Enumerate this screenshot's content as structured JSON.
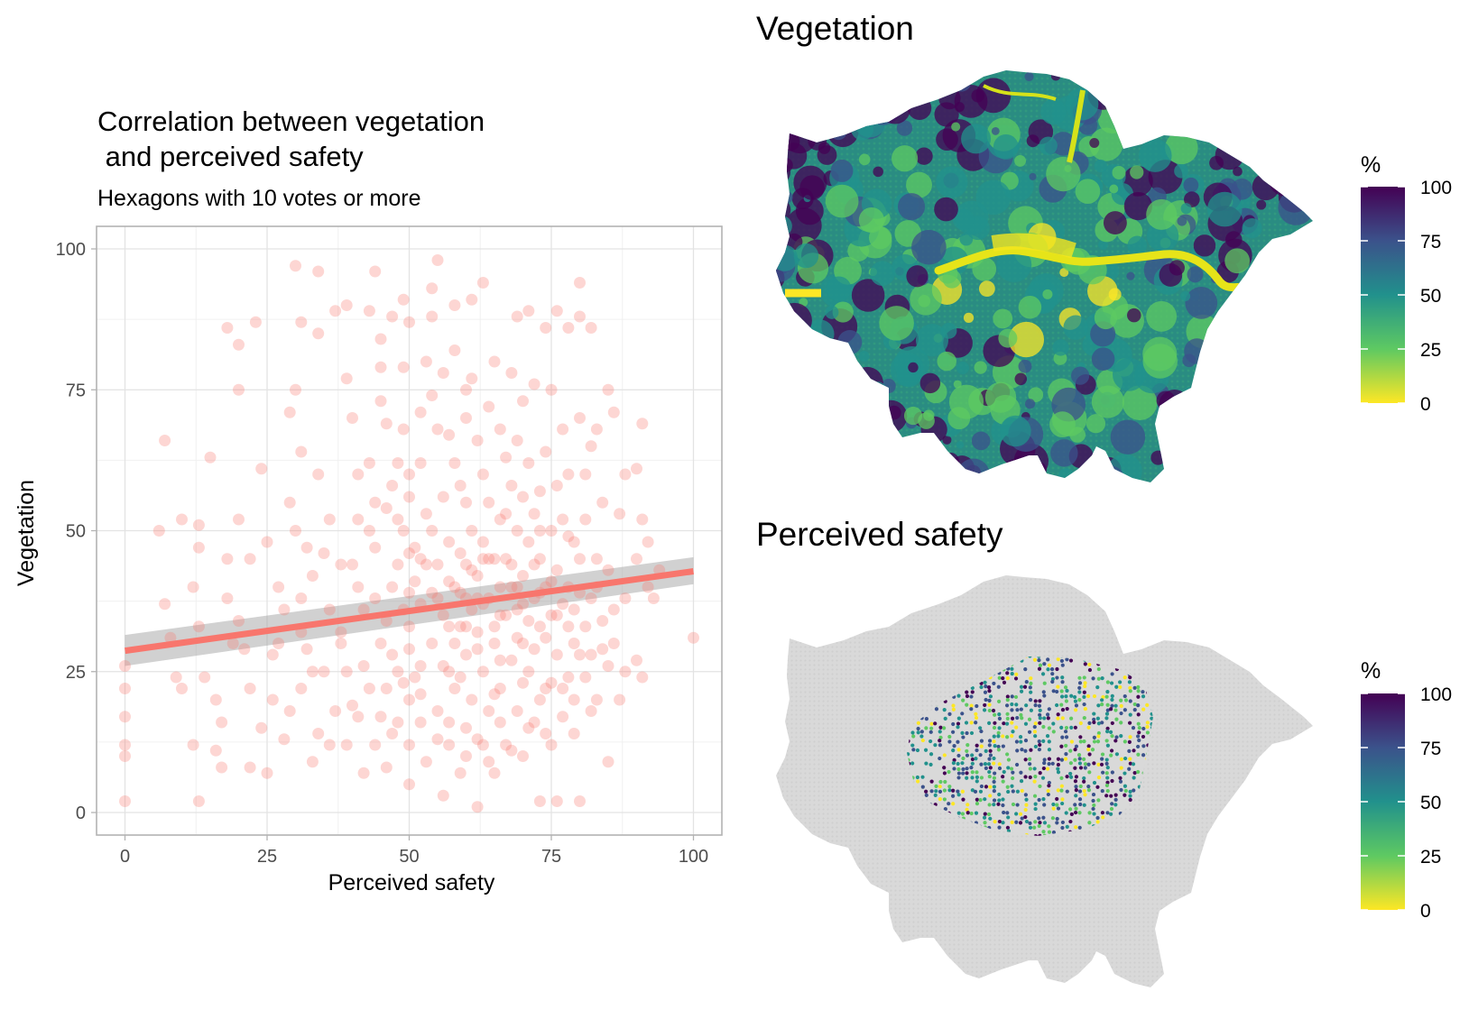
{
  "chart_data": [
    {
      "type": "scatter",
      "title": "Correlation between vegetation",
      "title_line2": " and perceived safety",
      "subtitle": "Hexagons with 10 votes or more",
      "xlabel": "Perceived safety",
      "ylabel": "Vegetation",
      "xlim": [
        -5,
        105
      ],
      "ylim": [
        -4,
        104
      ],
      "xticks": [
        0,
        25,
        50,
        75,
        100
      ],
      "yticks": [
        0,
        25,
        50,
        75,
        100
      ],
      "grid": true,
      "point_color": "#F8766D",
      "trend": {
        "x": [
          0,
          100
        ],
        "y": [
          28.7,
          42.8
        ],
        "ci_low": [
          26,
          40.5
        ],
        "ci_high": [
          31.5,
          45.3
        ],
        "color": "#F8766D"
      },
      "points": [
        [
          0,
          2
        ],
        [
          0,
          10
        ],
        [
          0,
          12
        ],
        [
          0,
          17
        ],
        [
          0,
          22
        ],
        [
          0,
          26
        ],
        [
          7,
          66
        ],
        [
          6,
          50
        ],
        [
          7,
          37
        ],
        [
          8,
          31
        ],
        [
          9,
          24
        ],
        [
          10,
          22
        ],
        [
          10,
          52
        ],
        [
          12,
          12
        ],
        [
          12,
          40
        ],
        [
          13,
          2
        ],
        [
          13,
          33
        ],
        [
          13,
          47
        ],
        [
          13,
          51
        ],
        [
          14,
          24
        ],
        [
          15,
          63
        ],
        [
          16,
          11
        ],
        [
          16,
          20
        ],
        [
          17,
          16
        ],
        [
          17,
          8
        ],
        [
          18,
          86
        ],
        [
          18,
          45
        ],
        [
          18,
          38
        ],
        [
          19,
          30
        ],
        [
          20,
          83
        ],
        [
          20,
          75
        ],
        [
          20,
          52
        ],
        [
          20,
          34
        ],
        [
          21,
          29
        ],
        [
          22,
          45
        ],
        [
          22,
          8
        ],
        [
          22,
          22
        ],
        [
          23,
          87
        ],
        [
          24,
          15
        ],
        [
          24,
          61
        ],
        [
          25,
          7
        ],
        [
          25,
          48
        ],
        [
          26,
          20
        ],
        [
          27,
          30
        ],
        [
          28,
          13
        ],
        [
          29,
          71
        ],
        [
          29,
          55
        ],
        [
          30,
          97
        ],
        [
          30,
          75
        ],
        [
          31,
          87
        ],
        [
          31,
          64
        ],
        [
          31,
          38
        ],
        [
          31,
          22
        ],
        [
          32,
          47
        ],
        [
          32,
          29
        ],
        [
          33,
          9
        ],
        [
          34,
          96
        ],
        [
          34,
          85
        ],
        [
          34,
          60
        ],
        [
          35,
          25
        ],
        [
          36,
          12
        ],
        [
          37,
          89
        ],
        [
          38,
          44
        ],
        [
          38,
          32
        ],
        [
          39,
          77
        ],
        [
          39,
          90
        ],
        [
          40,
          19
        ],
        [
          40,
          70
        ],
        [
          41,
          52
        ],
        [
          41,
          60
        ],
        [
          42,
          7
        ],
        [
          42,
          36
        ],
        [
          43,
          89
        ],
        [
          43,
          62
        ],
        [
          44,
          96
        ],
        [
          44,
          47
        ],
        [
          45,
          84
        ],
        [
          45,
          79
        ],
        [
          45,
          73
        ],
        [
          45,
          30
        ],
        [
          45,
          17
        ],
        [
          46,
          69
        ],
        [
          46,
          54
        ],
        [
          47,
          88
        ],
        [
          47,
          14
        ],
        [
          47,
          40
        ],
        [
          48,
          62
        ],
        [
          48,
          44
        ],
        [
          48,
          25
        ],
        [
          49,
          91
        ],
        [
          49,
          79
        ],
        [
          49,
          68
        ],
        [
          49,
          50
        ],
        [
          50,
          87
        ],
        [
          50,
          60
        ],
        [
          50,
          56
        ],
        [
          50,
          46
        ],
        [
          50,
          33
        ],
        [
          50,
          29
        ],
        [
          50,
          20
        ],
        [
          50,
          12
        ],
        [
          50,
          5
        ],
        [
          51,
          41
        ],
        [
          52,
          71
        ],
        [
          52,
          62
        ],
        [
          52,
          37
        ],
        [
          52,
          21
        ],
        [
          53,
          80
        ],
        [
          53,
          53
        ],
        [
          53,
          9
        ],
        [
          54,
          93
        ],
        [
          54,
          88
        ],
        [
          54,
          74
        ],
        [
          54,
          30
        ],
        [
          55,
          98
        ],
        [
          55,
          68
        ],
        [
          55,
          44
        ],
        [
          55,
          18
        ],
        [
          56,
          78
        ],
        [
          56,
          56
        ],
        [
          56,
          35
        ],
        [
          56,
          3
        ],
        [
          57,
          67
        ],
        [
          57,
          48
        ],
        [
          57,
          25
        ],
        [
          57,
          12
        ],
        [
          58,
          90
        ],
        [
          58,
          82
        ],
        [
          58,
          62
        ],
        [
          58,
          40
        ],
        [
          58,
          22
        ],
        [
          59,
          58
        ],
        [
          59,
          46
        ],
        [
          59,
          33
        ],
        [
          59,
          7
        ],
        [
          60,
          75
        ],
        [
          60,
          70
        ],
        [
          60,
          55
        ],
        [
          60,
          44
        ],
        [
          60,
          28
        ],
        [
          60,
          15
        ],
        [
          61,
          91
        ],
        [
          61,
          77
        ],
        [
          61,
          50
        ],
        [
          61,
          36
        ],
        [
          61,
          20
        ],
        [
          62,
          66
        ],
        [
          62,
          42
        ],
        [
          62,
          32
        ],
        [
          62,
          1
        ],
        [
          63,
          94
        ],
        [
          63,
          60
        ],
        [
          63,
          48
        ],
        [
          63,
          25
        ],
        [
          63,
          12
        ],
        [
          64,
          72
        ],
        [
          64,
          55
        ],
        [
          64,
          38
        ],
        [
          64,
          18
        ],
        [
          65,
          80
        ],
        [
          65,
          45
        ],
        [
          65,
          30
        ],
        [
          65,
          7
        ],
        [
          66,
          68
        ],
        [
          66,
          52
        ],
        [
          66,
          40
        ],
        [
          66,
          22
        ],
        [
          67,
          63
        ],
        [
          67,
          35
        ],
        [
          67,
          12
        ],
        [
          68,
          78
        ],
        [
          68,
          58
        ],
        [
          68,
          44
        ],
        [
          68,
          27
        ],
        [
          69,
          88
        ],
        [
          69,
          66
        ],
        [
          69,
          50
        ],
        [
          69,
          36
        ],
        [
          69,
          18
        ],
        [
          70,
          73
        ],
        [
          70,
          56
        ],
        [
          70,
          42
        ],
        [
          70,
          30
        ],
        [
          70,
          10
        ],
        [
          71,
          89
        ],
        [
          71,
          62
        ],
        [
          71,
          48
        ],
        [
          71,
          25
        ],
        [
          72,
          76
        ],
        [
          72,
          53
        ],
        [
          72,
          38
        ],
        [
          72,
          16
        ],
        [
          73,
          57
        ],
        [
          73,
          45
        ],
        [
          73,
          33
        ],
        [
          73,
          2
        ],
        [
          74,
          86
        ],
        [
          74,
          64
        ],
        [
          74,
          40
        ],
        [
          74,
          22
        ],
        [
          75,
          75
        ],
        [
          75,
          50
        ],
        [
          75,
          35
        ],
        [
          75,
          12
        ],
        [
          76,
          89
        ],
        [
          76,
          58
        ],
        [
          76,
          43
        ],
        [
          76,
          28
        ],
        [
          76,
          2
        ],
        [
          77,
          68
        ],
        [
          77,
          52
        ],
        [
          77,
          22
        ],
        [
          78,
          86
        ],
        [
          78,
          60
        ],
        [
          78,
          40
        ],
        [
          78,
          33
        ],
        [
          79,
          48
        ],
        [
          79,
          14
        ],
        [
          80,
          94
        ],
        [
          80,
          88
        ],
        [
          80,
          70
        ],
        [
          80,
          45
        ],
        [
          80,
          28
        ],
        [
          80,
          2
        ],
        [
          81,
          60
        ],
        [
          81,
          52
        ],
        [
          82,
          86
        ],
        [
          82,
          65
        ],
        [
          82,
          38
        ],
        [
          82,
          28
        ],
        [
          82,
          18
        ],
        [
          83,
          68
        ],
        [
          83,
          45
        ],
        [
          84,
          55
        ],
        [
          84,
          34
        ],
        [
          85,
          75
        ],
        [
          85,
          43
        ],
        [
          85,
          9
        ],
        [
          86,
          71
        ],
        [
          86,
          30
        ],
        [
          87,
          53
        ],
        [
          87,
          20
        ],
        [
          88,
          60
        ],
        [
          88,
          38
        ],
        [
          88,
          25
        ],
        [
          90,
          61
        ],
        [
          90,
          45
        ],
        [
          90,
          27
        ],
        [
          91,
          69
        ],
        [
          91,
          52
        ],
        [
          91,
          24
        ],
        [
          92,
          48
        ],
        [
          92,
          40
        ],
        [
          93,
          38
        ],
        [
          94,
          43
        ],
        [
          100,
          31
        ],
        [
          30,
          50
        ],
        [
          33,
          42
        ],
        [
          36,
          36
        ],
        [
          38,
          30
        ],
        [
          40,
          44
        ],
        [
          42,
          26
        ],
        [
          43,
          50
        ],
        [
          44,
          38
        ],
        [
          46,
          34
        ],
        [
          47,
          28
        ],
        [
          48,
          52
        ],
        [
          49,
          36
        ],
        [
          51,
          47
        ],
        [
          52,
          26
        ],
        [
          53,
          44
        ],
        [
          54,
          50
        ],
        [
          55,
          38
        ],
        [
          57,
          41
        ],
        [
          58,
          30
        ],
        [
          59,
          39
        ],
        [
          60,
          38
        ],
        [
          61,
          43
        ],
        [
          62,
          29
        ],
        [
          63,
          37
        ],
        [
          64,
          45
        ],
        [
          65,
          33
        ],
        [
          66,
          35
        ],
        [
          67,
          45
        ],
        [
          68,
          40
        ],
        [
          69,
          31
        ],
        [
          70,
          37
        ],
        [
          71,
          34
        ],
        [
          72,
          44
        ],
        [
          73,
          39
        ],
        [
          74,
          31
        ],
        [
          75,
          41
        ],
        [
          77,
          37
        ],
        [
          78,
          49
        ],
        [
          79,
          36
        ],
        [
          80,
          39
        ],
        [
          81,
          33
        ],
        [
          83,
          40
        ],
        [
          84,
          29
        ],
        [
          86,
          36
        ],
        [
          26,
          28
        ],
        [
          28,
          36
        ],
        [
          29,
          18
        ],
        [
          33,
          25
        ],
        [
          35,
          46
        ],
        [
          37,
          18
        ],
        [
          39,
          25
        ],
        [
          41,
          40
        ],
        [
          43,
          22
        ],
        [
          44,
          55
        ],
        [
          46,
          22
        ],
        [
          47,
          58
        ],
        [
          49,
          23
        ],
        [
          51,
          24
        ],
        [
          52,
          45
        ],
        [
          54,
          39
        ],
        [
          56,
          26
        ],
        [
          57,
          33
        ],
        [
          59,
          24
        ],
        [
          60,
          33
        ],
        [
          62,
          38
        ],
        [
          63,
          45
        ],
        [
          65,
          21
        ],
        [
          66,
          27
        ],
        [
          67,
          53
        ],
        [
          69,
          40
        ],
        [
          70,
          23
        ],
        [
          72,
          29
        ],
        [
          73,
          50
        ],
        [
          75,
          23
        ],
        [
          76,
          35
        ],
        [
          78,
          24
        ],
        [
          79,
          30
        ],
        [
          81,
          24
        ],
        [
          83,
          20
        ],
        [
          85,
          26
        ],
        [
          27,
          40
        ],
        [
          31,
          32
        ],
        [
          34,
          14
        ],
        [
          36,
          52
        ],
        [
          39,
          12
        ],
        [
          41,
          17
        ],
        [
          44,
          12
        ],
        [
          46,
          8
        ],
        [
          48,
          16
        ],
        [
          50,
          39
        ],
        [
          52,
          16
        ],
        [
          55,
          13
        ],
        [
          57,
          16
        ],
        [
          60,
          10
        ],
        [
          62,
          13
        ],
        [
          64,
          9
        ],
        [
          66,
          16
        ],
        [
          68,
          11
        ],
        [
          71,
          15
        ],
        [
          73,
          20
        ],
        [
          74,
          14
        ],
        [
          77,
          17
        ],
        [
          79,
          20
        ]
      ]
    },
    {
      "type": "heatmap",
      "title": "Vegetation",
      "legend": {
        "title": "%",
        "ticks": [
          0,
          25,
          50,
          75,
          100
        ],
        "palette": [
          "#FDE725",
          "#5EC962",
          "#21918C",
          "#3B528B",
          "#440154"
        ]
      }
    },
    {
      "type": "heatmap",
      "title": "Perceived safety",
      "legend": {
        "title": "%",
        "ticks": [
          0,
          25,
          50,
          75,
          100
        ],
        "palette": [
          "#FDE725",
          "#5EC962",
          "#21918C",
          "#3B528B",
          "#440154"
        ]
      },
      "no_data_color": "#D9D9D9"
    }
  ]
}
